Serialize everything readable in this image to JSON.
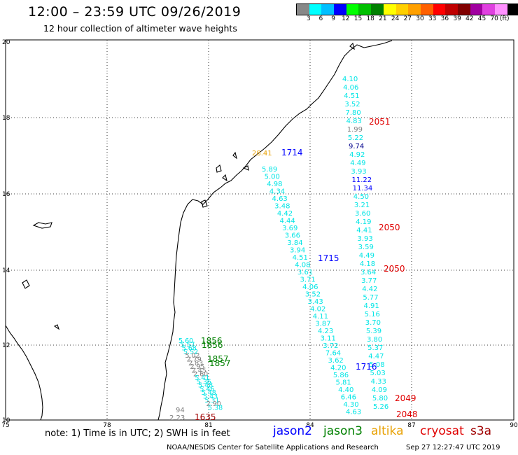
{
  "title": "12:00 – 23:59 UTC 09/26/2019",
  "subtitle": "12 hour collection of altimeter wave heights",
  "legend": {
    "colors": [
      "#888888",
      "#00ffff",
      "#00bfff",
      "#0000ff",
      "#00ff00",
      "#00c000",
      "#008000",
      "#ffff00",
      "#ffd000",
      "#ffa000",
      "#ff6000",
      "#ff0000",
      "#c00000",
      "#800000",
      "#a000a0",
      "#e040e0",
      "#ff90ff",
      "#000000"
    ],
    "ticks": [
      "3",
      "6",
      "9",
      "12",
      "15",
      "18",
      "21",
      "24",
      "27",
      "30",
      "33",
      "36",
      "39",
      "42",
      "45",
      "70"
    ],
    "units": "(ft)"
  },
  "axes": {
    "x_ticks": [
      "75",
      "78",
      "81",
      "84",
      "87",
      "90"
    ],
    "y_ticks": [
      "20",
      "18",
      "16",
      "14",
      "12",
      "10"
    ]
  },
  "track_colors": {
    "cyan": "#00e5e5",
    "gray": "#808080",
    "navy": "#00008b",
    "orange": "#e8a000",
    "green": "#008000",
    "red": "#e00000",
    "blue": "#0000ff",
    "maroon": "#a00000"
  },
  "tracks": [
    {
      "name": "track-east",
      "labels": [
        {
          "t": "4.10",
          "c": "cyan"
        },
        {
          "t": "4.06",
          "c": "cyan"
        },
        {
          "t": "4.51",
          "c": "cyan"
        },
        {
          "t": "3.52",
          "c": "cyan"
        },
        {
          "t": "7.80",
          "c": "cyan"
        },
        {
          "t": "4.83",
          "c": "cyan"
        },
        {
          "t": "1.99",
          "c": "gray"
        },
        {
          "t": "5.22",
          "c": "cyan"
        },
        {
          "t": "9.74",
          "c": "navy"
        },
        {
          "t": "4.92",
          "c": "cyan"
        },
        {
          "t": "4.49",
          "c": "cyan"
        },
        {
          "t": "3.93",
          "c": "cyan"
        },
        {
          "t": "11.22",
          "c": "blue"
        },
        {
          "t": "11.34",
          "c": "blue"
        },
        {
          "t": "4.50",
          "c": "cyan"
        },
        {
          "t": "3.21",
          "c": "cyan"
        },
        {
          "t": "3.60",
          "c": "cyan"
        },
        {
          "t": "4.19",
          "c": "cyan"
        },
        {
          "t": "4.41",
          "c": "cyan"
        },
        {
          "t": "3.93",
          "c": "cyan"
        },
        {
          "t": "3.59",
          "c": "cyan"
        },
        {
          "t": "4.49",
          "c": "cyan"
        },
        {
          "t": "4.18",
          "c": "cyan"
        },
        {
          "t": "3.64",
          "c": "cyan"
        },
        {
          "t": "3.77",
          "c": "cyan"
        },
        {
          "t": "4.42",
          "c": "cyan"
        },
        {
          "t": "5.77",
          "c": "cyan"
        },
        {
          "t": "4.91",
          "c": "cyan"
        },
        {
          "t": "5.16",
          "c": "cyan"
        },
        {
          "t": "3.70",
          "c": "cyan"
        },
        {
          "t": "5.39",
          "c": "cyan"
        },
        {
          "t": "3.80",
          "c": "cyan"
        },
        {
          "t": "5.37",
          "c": "cyan"
        },
        {
          "t": "4.47",
          "c": "cyan"
        },
        {
          "t": "5.08",
          "c": "cyan"
        },
        {
          "t": "5.03",
          "c": "cyan"
        },
        {
          "t": "4.33",
          "c": "cyan"
        },
        {
          "t": "4.09",
          "c": "cyan"
        },
        {
          "t": "5.80",
          "c": "cyan"
        },
        {
          "t": "5.26",
          "c": "cyan"
        }
      ]
    },
    {
      "name": "track-middle",
      "labels": [
        {
          "t": "5.89",
          "c": "cyan"
        },
        {
          "t": "5.00",
          "c": "cyan"
        },
        {
          "t": "4.98",
          "c": "cyan"
        },
        {
          "t": "4.34",
          "c": "cyan"
        },
        {
          "t": "4.63",
          "c": "cyan"
        },
        {
          "t": "3.48",
          "c": "cyan"
        },
        {
          "t": "4.42",
          "c": "cyan"
        },
        {
          "t": "4.44",
          "c": "cyan"
        },
        {
          "t": "3.69",
          "c": "cyan"
        },
        {
          "t": "3.66",
          "c": "cyan"
        },
        {
          "t": "3.84",
          "c": "cyan"
        },
        {
          "t": "3.94",
          "c": "cyan"
        },
        {
          "t": "4.51",
          "c": "cyan"
        },
        {
          "t": "4.08",
          "c": "cyan"
        },
        {
          "t": "3.61",
          "c": "cyan"
        },
        {
          "t": "3.71",
          "c": "cyan"
        },
        {
          "t": "4.06",
          "c": "cyan"
        },
        {
          "t": "3.52",
          "c": "cyan"
        },
        {
          "t": "3.43",
          "c": "cyan"
        },
        {
          "t": "4.02",
          "c": "cyan"
        },
        {
          "t": "4.11",
          "c": "cyan"
        },
        {
          "t": "3.87",
          "c": "cyan"
        },
        {
          "t": "4.23",
          "c": "cyan"
        },
        {
          "t": "3.11",
          "c": "cyan"
        },
        {
          "t": "3.72",
          "c": "cyan"
        },
        {
          "t": "7.64",
          "c": "cyan"
        },
        {
          "t": "3.62",
          "c": "cyan"
        },
        {
          "t": "4.20",
          "c": "cyan"
        },
        {
          "t": "5.86",
          "c": "cyan"
        },
        {
          "t": "5.81",
          "c": "cyan"
        },
        {
          "t": "4.40",
          "c": "cyan"
        },
        {
          "t": "6.46",
          "c": "cyan"
        },
        {
          "t": "4.30",
          "c": "cyan"
        },
        {
          "t": "4.63",
          "c": "cyan"
        }
      ]
    },
    {
      "name": "track-west",
      "labels": [
        {
          "t": "5.60",
          "c": "cyan"
        },
        {
          "t": "5.57",
          "c": "cyan"
        },
        {
          "t": "5.68",
          "c": "cyan"
        },
        {
          "t": "5.52",
          "c": "cyan"
        },
        {
          "t": "5.02",
          "c": "gray"
        },
        {
          "t": "2.79",
          "c": "gray"
        },
        {
          "t": "2.83",
          "c": "gray"
        },
        {
          "t": "2.95",
          "c": "gray"
        },
        {
          "t": "2.45",
          "c": "gray"
        },
        {
          "t": "2.60",
          "c": "gray"
        },
        {
          "t": "5.41",
          "c": "cyan"
        },
        {
          "t": "5.36",
          "c": "cyan"
        },
        {
          "t": "5.48",
          "c": "cyan"
        },
        {
          "t": "5.46",
          "c": "cyan"
        },
        {
          "t": "5.48",
          "c": "cyan"
        },
        {
          "t": "5.43",
          "c": "cyan"
        },
        {
          "t": "5.31",
          "c": "cyan"
        },
        {
          "t": "2.90",
          "c": "gray"
        },
        {
          "t": "5.38",
          "c": "cyan"
        }
      ]
    }
  ],
  "extra_labels": [
    {
      "t": "28.41",
      "c": "orange"
    },
    {
      "t": "1714",
      "c": "blue"
    },
    {
      "t": "2051",
      "c": "red"
    },
    {
      "t": "2050",
      "c": "red"
    },
    {
      "t": "2050",
      "c": "red"
    },
    {
      "t": "1715",
      "c": "blue"
    },
    {
      "t": "1716",
      "c": "blue"
    },
    {
      "t": "1856",
      "c": "green"
    },
    {
      "t": "1856",
      "c": "green"
    },
    {
      "t": "1857",
      "c": "green"
    },
    {
      "t": "1857",
      "c": "green"
    },
    {
      "t": "2049",
      "c": "red"
    },
    {
      "t": "2048",
      "c": "red"
    },
    {
      "t": "94",
      "c": "gray"
    },
    {
      "t": "2.23",
      "c": "gray"
    },
    {
      "t": "1635",
      "c": "maroon"
    }
  ],
  "note": "note: 1) Time is in UTC; 2) SWH is in feet",
  "satellites": [
    {
      "name": "jason2",
      "color": "#0000ff"
    },
    {
      "name": "jason3",
      "color": "#008000"
    },
    {
      "name": "altika",
      "color": "#e8a000"
    },
    {
      "name": "cryosat",
      "color": "#e00000"
    },
    {
      "name": "s3a",
      "color": "#a00000"
    }
  ],
  "footer_left": "NOAA/NESDIS Center for Satellite Applications and Research",
  "footer_right": "Sep 27 12:27:47 UTC 2019"
}
